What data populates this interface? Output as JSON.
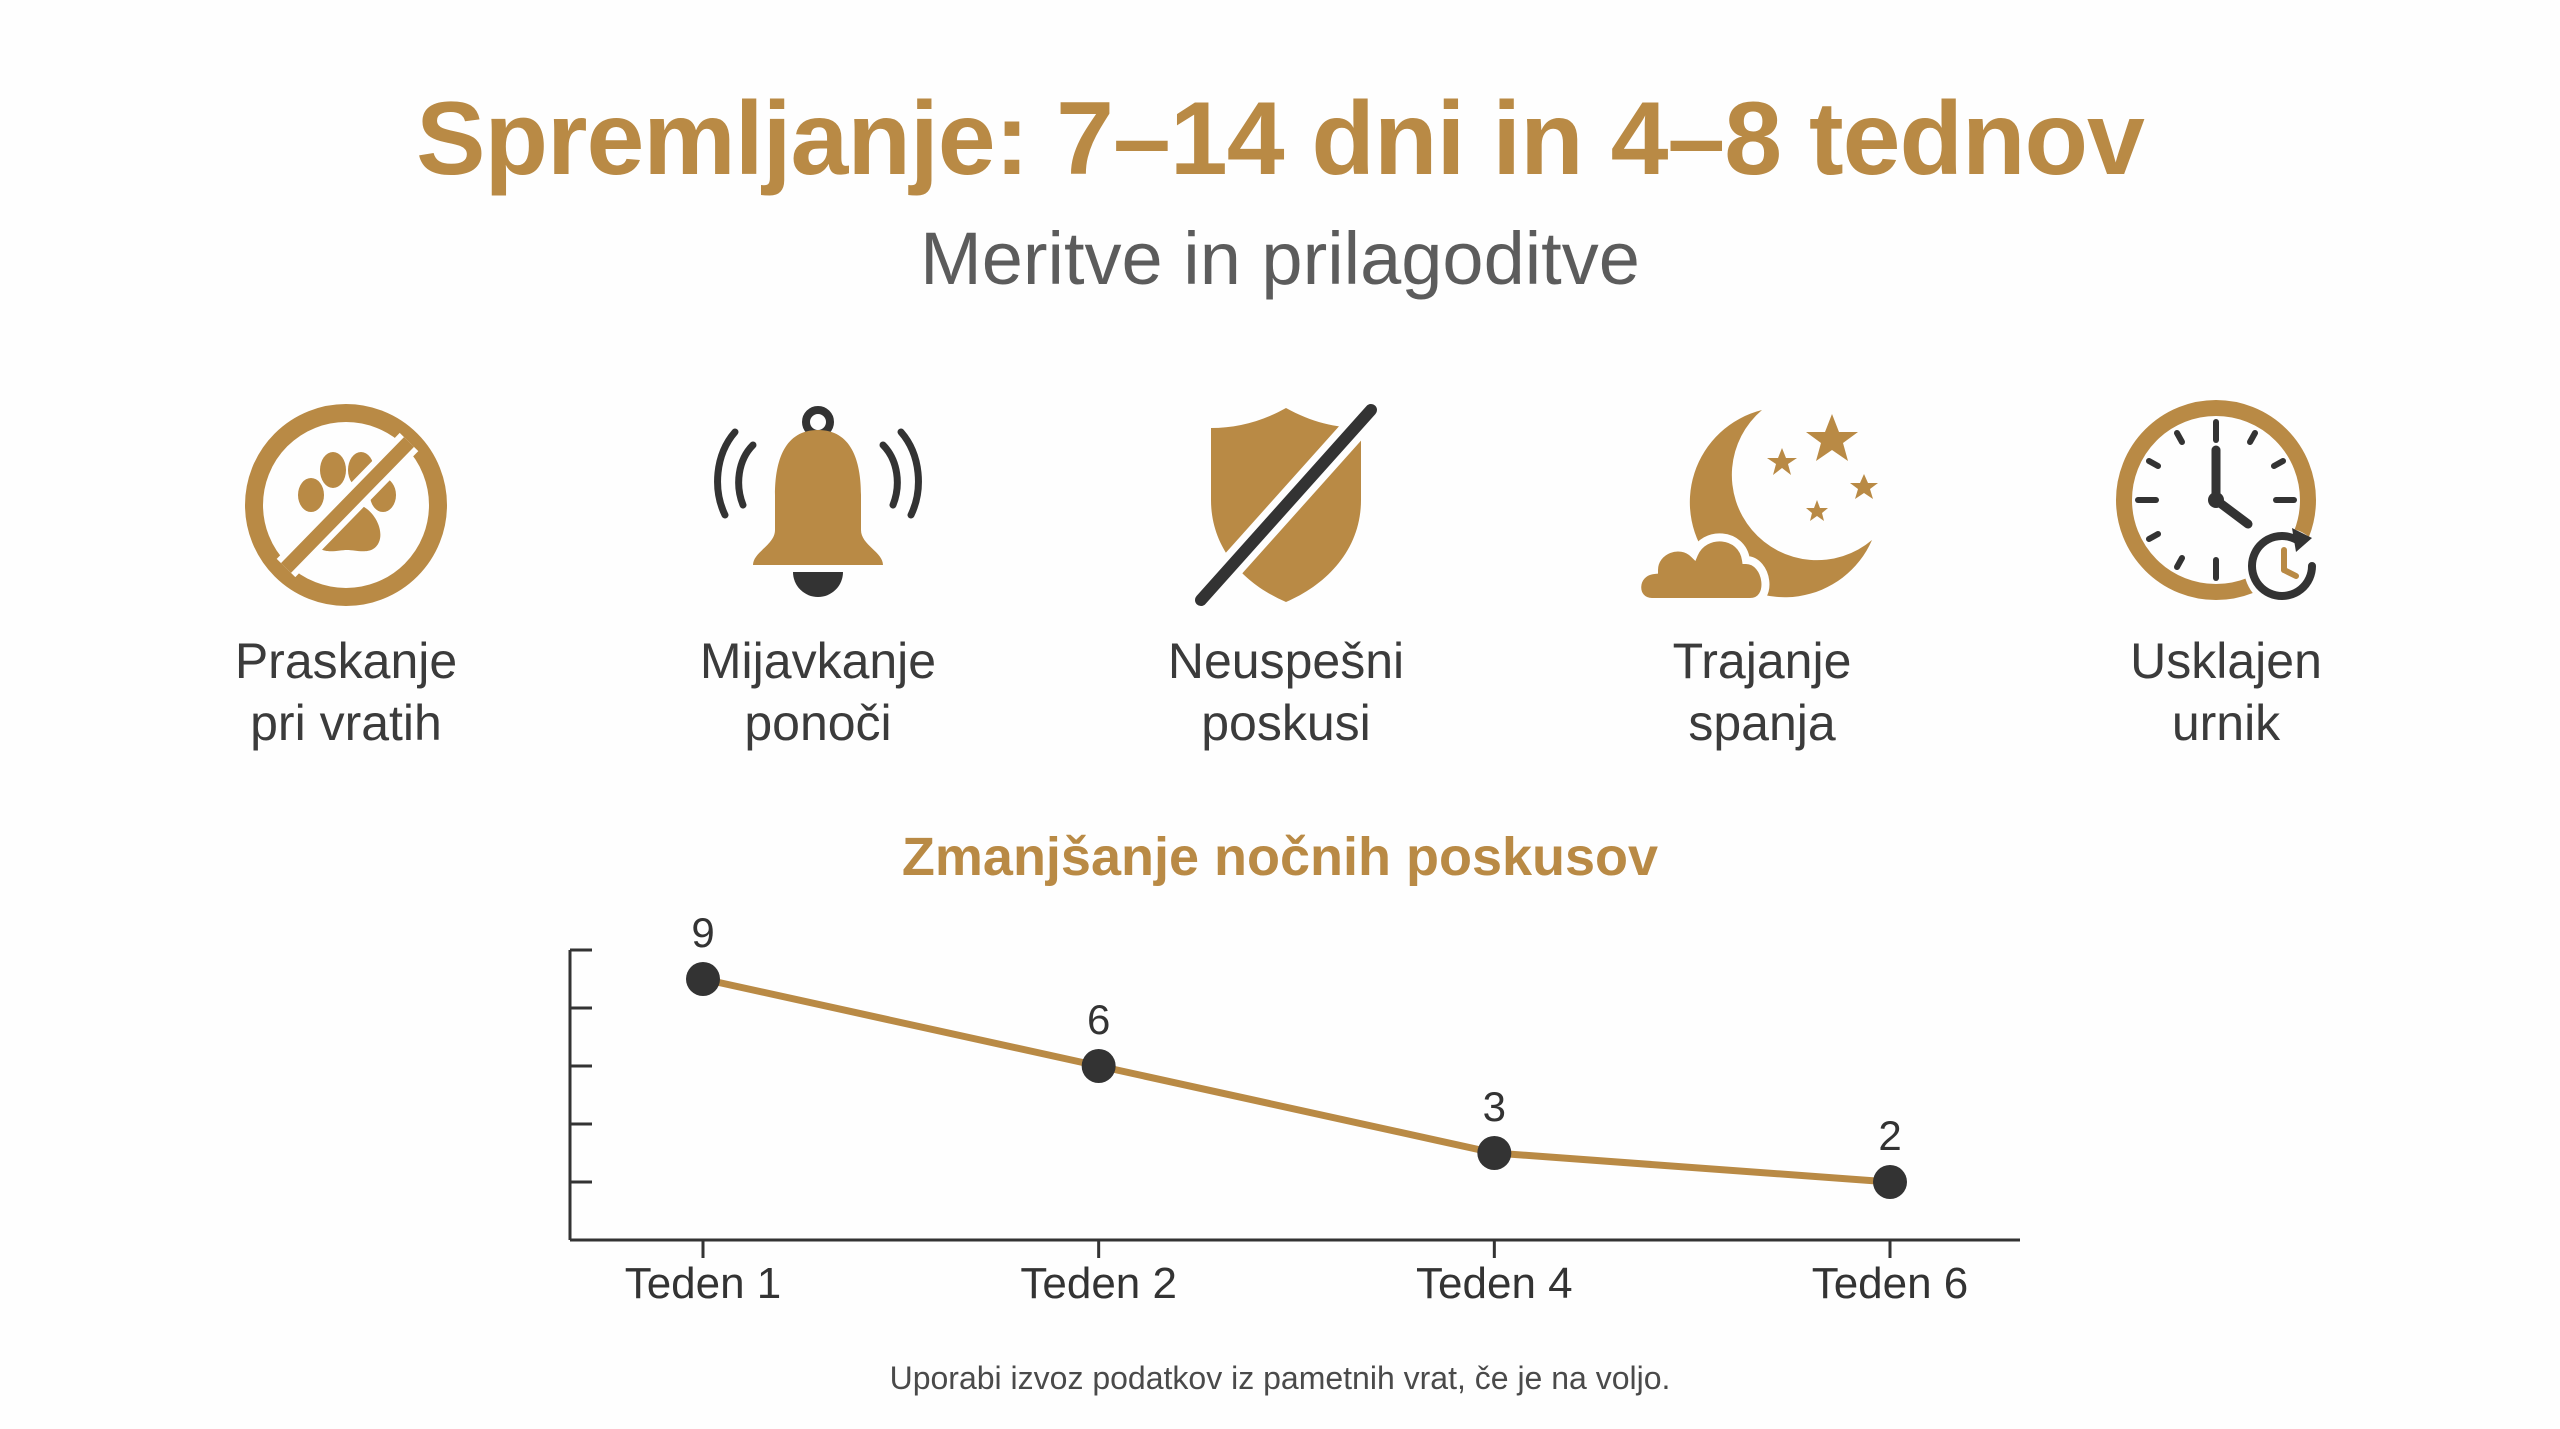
{
  "title": "Spremljanje: 7–14 dni in 4–8 tednov",
  "subtitle": "Meritve in prilagoditve",
  "colors": {
    "accent": "#b98a45",
    "dark": "#333333",
    "text": "#3b3b3b"
  },
  "icons": [
    {
      "icon": "paw-prohibited-icon",
      "label": "Praskanje\npri vratih"
    },
    {
      "icon": "ringing-bell-icon",
      "label": "Mijavkanje\nponoči"
    },
    {
      "icon": "shield-slash-icon",
      "label": "Neuspešni\nposkusi"
    },
    {
      "icon": "moon-stars-cloud-icon",
      "label": "Trajanje\nspanja"
    },
    {
      "icon": "clock-sync-icon",
      "label": "Usklajen\nurnik"
    }
  ],
  "chart_data": {
    "type": "line",
    "title": "Zmanjšanje nočnih poskusov",
    "categories": [
      "Teden 1",
      "Teden 2",
      "Teden 4",
      "Teden 6"
    ],
    "series": [
      {
        "values": [
          9,
          6,
          3,
          2
        ]
      }
    ],
    "ylim": [
      0,
      10
    ],
    "grid": false,
    "legend": "none"
  },
  "footnote": "Uporabi izvoz podatkov iz pametnih vrat, če je na voljo."
}
